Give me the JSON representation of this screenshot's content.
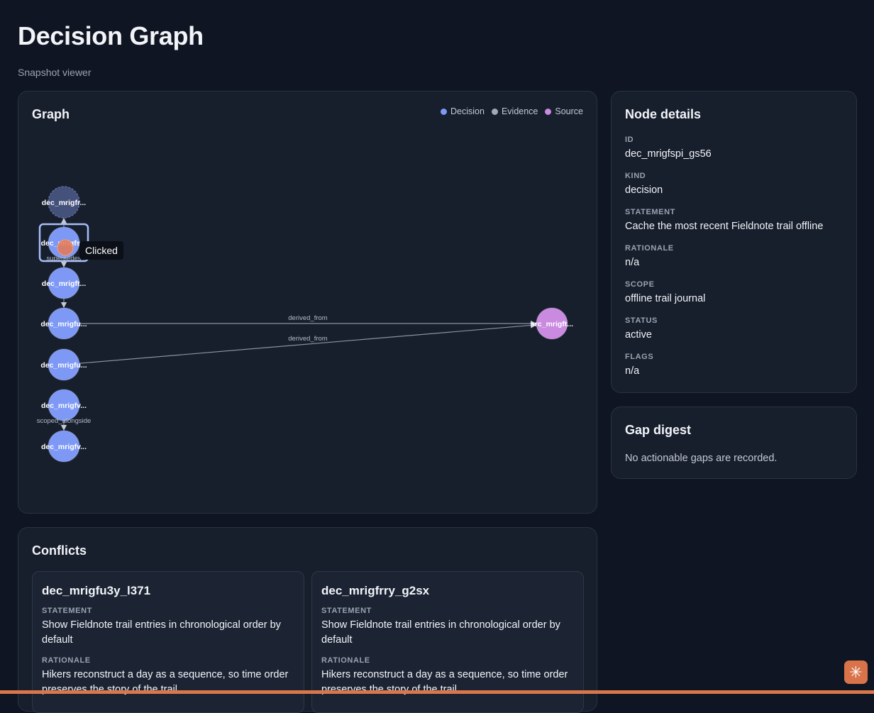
{
  "page": {
    "title": "Decision Graph",
    "subtitle": "Snapshot viewer"
  },
  "graph": {
    "title": "Graph",
    "legend": [
      {
        "label": "Decision",
        "color": "#7d99f5"
      },
      {
        "label": "Evidence",
        "color": "#a3aab5"
      },
      {
        "label": "Source",
        "color": "#c98ae0"
      }
    ],
    "nodes": [
      {
        "id": "n0",
        "label": "dec_mrigfr...",
        "kind": "decision",
        "state": "ghost"
      },
      {
        "id": "n1",
        "label": "dec_mrigfs...",
        "kind": "decision",
        "state": "selected"
      },
      {
        "id": "n2",
        "label": "dec_mrigft...",
        "kind": "decision",
        "state": "normal"
      },
      {
        "id": "n3",
        "label": "dec_mrigfu...",
        "kind": "decision",
        "state": "normal"
      },
      {
        "id": "n4",
        "label": "dec_mrigfu...",
        "kind": "decision",
        "state": "normal"
      },
      {
        "id": "n5",
        "label": "dec_mrigfv...",
        "kind": "decision",
        "state": "normal"
      },
      {
        "id": "n6",
        "label": "dec_mrigfv...",
        "kind": "decision",
        "state": "normal"
      },
      {
        "id": "s0",
        "label": "src_mrigft...",
        "kind": "source",
        "state": "normal"
      }
    ],
    "edges": [
      {
        "from": "n1",
        "to": "n0",
        "label": ""
      },
      {
        "from": "n1",
        "to": "n2",
        "label": "supersedes"
      },
      {
        "from": "n2",
        "to": "n3",
        "label": ""
      },
      {
        "from": "n3",
        "to": "s0",
        "label": "derived_from"
      },
      {
        "from": "n4",
        "to": "s0",
        "label": "derived_from"
      },
      {
        "from": "n5",
        "to": "n6",
        "label": "scoped_alongside"
      }
    ],
    "tooltip": "Clicked"
  },
  "details": {
    "title": "Node details",
    "fields": [
      {
        "label": "ID",
        "value": "dec_mrigfspi_gs56"
      },
      {
        "label": "KIND",
        "value": "decision"
      },
      {
        "label": "STATEMENT",
        "value": "Cache the most recent Fieldnote trail offline"
      },
      {
        "label": "RATIONALE",
        "value": "n/a"
      },
      {
        "label": "SCOPE",
        "value": "offline trail journal"
      },
      {
        "label": "STATUS",
        "value": "active"
      },
      {
        "label": "FLAGS",
        "value": "n/a"
      }
    ]
  },
  "gaps": {
    "title": "Gap digest",
    "message": "No actionable gaps are recorded."
  },
  "conflicts": {
    "title": "Conflicts",
    "statement_label": "STATEMENT",
    "rationale_label": "RATIONALE",
    "items": [
      {
        "id": "dec_mrigfu3y_l371",
        "statement": "Show Fieldnote trail entries in chronological order by default",
        "rationale": "Hikers reconstruct a day as a sequence, so time order preserves the story of the trail."
      },
      {
        "id": "dec_mrigfrry_g2sx",
        "statement": "Show Fieldnote trail entries in chronological order by default",
        "rationale": "Hikers reconstruct a day as a sequence, so time order preserves the story of the trail."
      }
    ]
  },
  "badge": {
    "glyph": "✳"
  }
}
